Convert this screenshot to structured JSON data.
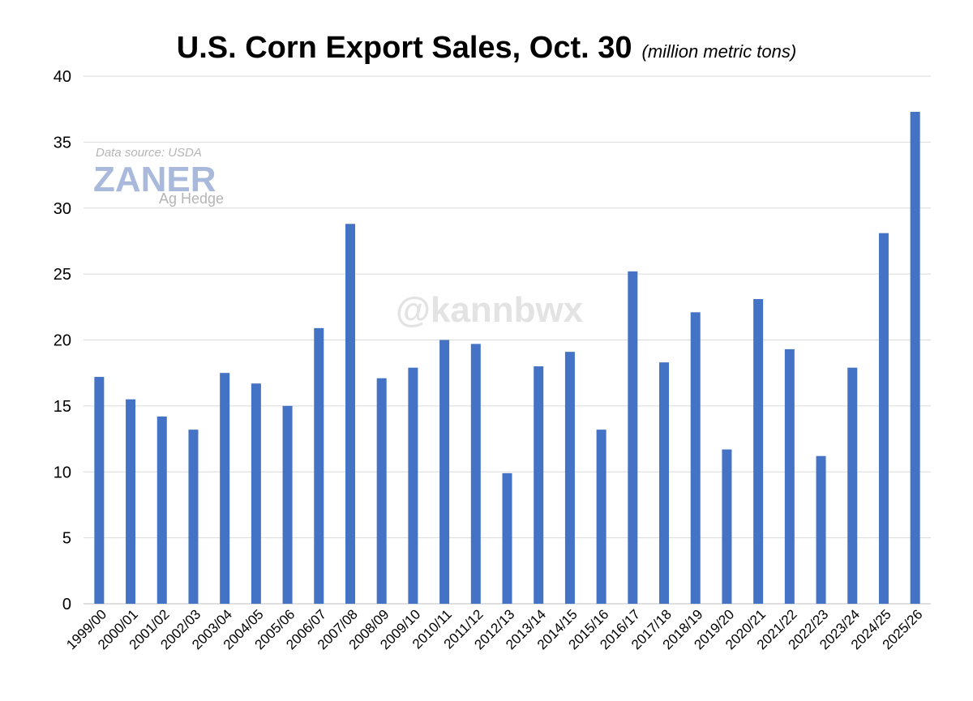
{
  "chart_data": {
    "type": "bar",
    "title": "U.S. Corn Export Sales, Oct. 30",
    "subtitle": "(million metric tons)",
    "xlabel": "",
    "ylabel": "",
    "ylim": [
      0,
      40
    ],
    "yticks": [
      0,
      5,
      10,
      15,
      20,
      25,
      30,
      35,
      40
    ],
    "grid": true,
    "bar_color": "#4472c4",
    "categories": [
      "1999/00",
      "2000/01",
      "2001/02",
      "2002/03",
      "2003/04",
      "2004/05",
      "2005/06",
      "2006/07",
      "2007/08",
      "2008/09",
      "2009/10",
      "2010/11",
      "2011/12",
      "2012/13",
      "2013/14",
      "2014/15",
      "2015/16",
      "2016/17",
      "2017/18",
      "2018/19",
      "2019/20",
      "2020/21",
      "2021/22",
      "2022/23",
      "2023/24",
      "2024/25",
      "2025/26"
    ],
    "values": [
      17.2,
      15.5,
      14.2,
      13.2,
      17.5,
      16.7,
      15.0,
      20.9,
      28.8,
      17.1,
      17.9,
      20.0,
      19.7,
      9.9,
      18.0,
      19.1,
      13.2,
      25.2,
      18.3,
      22.1,
      11.7,
      23.1,
      19.3,
      11.2,
      17.9,
      28.1,
      37.3
    ]
  },
  "annotations": {
    "source": "Data source: USDA",
    "logo_main": "ZANER",
    "logo_sub": "Ag Hedge",
    "watermark": "@kannbwx"
  }
}
